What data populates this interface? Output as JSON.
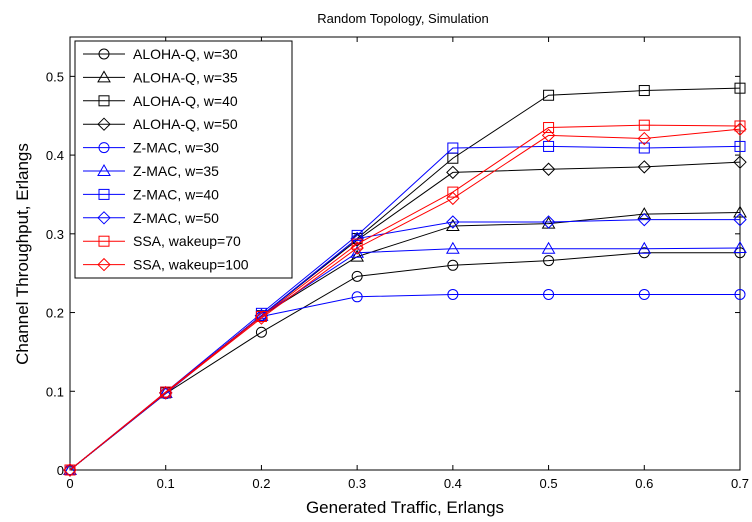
{
  "chart_data": {
    "type": "line",
    "title": "Random Topology, Simulation",
    "xlabel": "Generated Traffic, Erlangs",
    "ylabel": "Channel Throughput, Erlangs",
    "xlim": [
      0,
      0.7
    ],
    "ylim": [
      0,
      0.55
    ],
    "xticks": [
      0,
      0.1,
      0.2,
      0.3,
      0.4,
      0.5,
      0.6,
      0.7
    ],
    "yticks": [
      0,
      0.1,
      0.2,
      0.3,
      0.4,
      0.5
    ],
    "xtick_labels": [
      "0",
      "0.1",
      "0.2",
      "0.3",
      "0.4",
      "0.5",
      "0.6",
      "0.7"
    ],
    "ytick_labels": [
      "0",
      "0.1",
      "0.2",
      "0.3",
      "0.4",
      "0.5"
    ],
    "grid": false,
    "legend_position": "top-left",
    "x": [
      0,
      0.1,
      0.2,
      0.3,
      0.4,
      0.5,
      0.6,
      0.7
    ],
    "series": [
      {
        "name": "ALOHA-Q, w=30",
        "color": "#000000",
        "marker": "circle",
        "values": [
          0,
          0.097,
          0.175,
          0.246,
          0.26,
          0.266,
          0.276,
          0.276
        ]
      },
      {
        "name": "ALOHA-Q, w=35",
        "color": "#000000",
        "marker": "triangle",
        "values": [
          0,
          0.098,
          0.196,
          0.271,
          0.31,
          0.313,
          0.325,
          0.327
        ]
      },
      {
        "name": "ALOHA-Q, w=40",
        "color": "#000000",
        "marker": "square",
        "values": [
          0,
          0.098,
          0.196,
          0.294,
          0.396,
          0.476,
          0.482,
          0.485
        ]
      },
      {
        "name": "ALOHA-Q, w=50",
        "color": "#000000",
        "marker": "diamond",
        "values": [
          0,
          0.098,
          0.196,
          0.292,
          0.378,
          0.382,
          0.385,
          0.391
        ]
      },
      {
        "name": "Z-MAC, w=30",
        "color": "#0000ff",
        "marker": "circle",
        "values": [
          0,
          0.097,
          0.195,
          0.22,
          0.223,
          0.223,
          0.223,
          0.223
        ]
      },
      {
        "name": "Z-MAC, w=35",
        "color": "#0000ff",
        "marker": "triangle",
        "values": [
          0,
          0.098,
          0.196,
          0.276,
          0.281,
          0.281,
          0.281,
          0.282
        ]
      },
      {
        "name": "Z-MAC, w=40",
        "color": "#0000ff",
        "marker": "square",
        "values": [
          0,
          0.099,
          0.199,
          0.298,
          0.409,
          0.411,
          0.409,
          0.411
        ]
      },
      {
        "name": "Z-MAC, w=50",
        "color": "#0000ff",
        "marker": "diamond",
        "values": [
          0,
          0.098,
          0.196,
          0.294,
          0.315,
          0.315,
          0.318,
          0.318
        ]
      },
      {
        "name": "SSA, wakeup=70",
        "color": "#ff0000",
        "marker": "square",
        "values": [
          0,
          0.099,
          0.195,
          0.287,
          0.353,
          0.435,
          0.438,
          0.437
        ]
      },
      {
        "name": "SSA, wakeup=100",
        "color": "#ff0000",
        "marker": "diamond",
        "values": [
          0,
          0.098,
          0.193,
          0.282,
          0.345,
          0.425,
          0.421,
          0.433
        ]
      }
    ]
  }
}
